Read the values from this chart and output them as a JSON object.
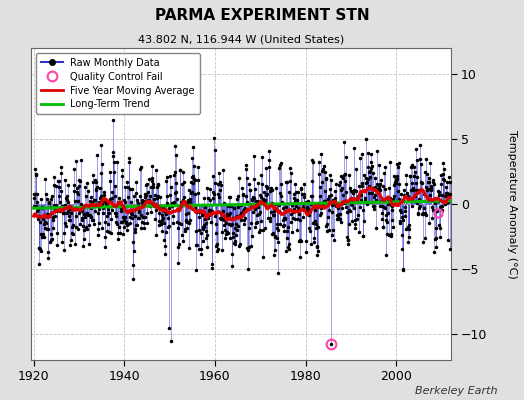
{
  "title": "PARMA EXPERIMENT STN",
  "subtitle": "43.802 N, 116.944 W (United States)",
  "ylabel": "Temperature Anomaly (°C)",
  "watermark": "Berkeley Earth",
  "xlim": [
    1919.5,
    2012
  ],
  "ylim": [
    -12,
    12
  ],
  "yticks": [
    -10,
    -5,
    0,
    5,
    10
  ],
  "xticks": [
    1920,
    1940,
    1960,
    1980,
    2000
  ],
  "fig_bg_color": "#e0e0e0",
  "plot_bg_color": "#ffffff",
  "raw_line_color": "#3333cc",
  "raw_dot_color": "#000000",
  "moving_avg_color": "#dd0000",
  "trend_color": "#00bb00",
  "qc_fail_color": "#ff44aa",
  "qc_fail_x": 1985.5,
  "qc_fail_y": -10.8,
  "trend_slope": 0.006,
  "trend_intercept": -0.05,
  "seed": 42,
  "start_year": 1920,
  "end_year": 2011,
  "n_months": 1104
}
